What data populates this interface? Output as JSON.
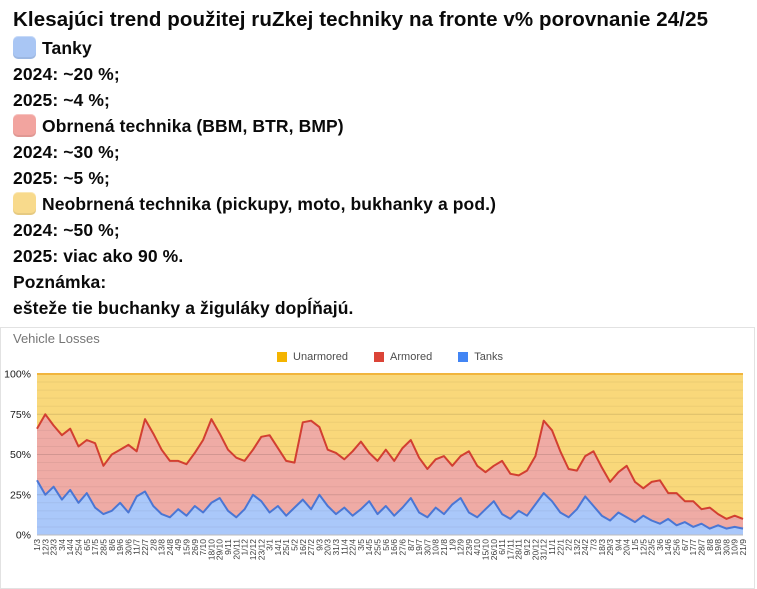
{
  "post": {
    "title": "Klesajúci trend použitej ruZkej techniky na fronte v% porovnanie 24/25",
    "items": [
      {
        "id": "tanks",
        "swatch": "#a9c6f4",
        "label": "Tanky",
        "lines": [
          "2024: ~20 %;",
          "2025: ~4 %;"
        ]
      },
      {
        "id": "armored",
        "swatch": "#f2a49f",
        "label": "Obrnená technika (BBM, BTR, BMP)",
        "lines": [
          "2024: ~30 %;",
          "2025: ~5 %;"
        ]
      },
      {
        "id": "unarmored",
        "swatch": "#f8da8c",
        "label": "Neobrnená technika (pickupy, moto, bukhanky a pod.)",
        "lines": [
          "2024: ~50 %;",
          "2025: viac ako 90 %."
        ]
      }
    ],
    "note_label": "Poznámka:",
    "note_text": "ešteže tie buchanky a žiguláky dopĺňajú."
  },
  "chart": {
    "title": "Vehicle Losses",
    "legend": [
      {
        "label": "Unarmored",
        "color": "#F4B400"
      },
      {
        "label": "Armored",
        "color": "#DB4437"
      },
      {
        "label": "Tanks",
        "color": "#4285F4"
      }
    ],
    "y_ticks": [
      {
        "label": "100%",
        "value": 100
      },
      {
        "label": "75%",
        "value": 75
      },
      {
        "label": "50%",
        "value": 50
      },
      {
        "label": "25%",
        "value": 25
      },
      {
        "label": "0%",
        "value": 0
      }
    ]
  },
  "chart_data": {
    "type": "area",
    "stacked": "percent",
    "title": "Vehicle Losses",
    "ylim": [
      0,
      100
    ],
    "y_major_step": 25,
    "y_minor_step": 5,
    "legend_position": "top-center",
    "categories": [
      "1/3",
      "12/3",
      "23/3",
      "3/4",
      "14/4",
      "25/4",
      "6/5",
      "17/5",
      "28/5",
      "8/6",
      "19/6",
      "30/6",
      "11/7",
      "22/7",
      "2/8",
      "13/8",
      "24/8",
      "4/9",
      "15/9",
      "26/9",
      "7/10",
      "18/10",
      "29/10",
      "9/11",
      "20/11",
      "1/12",
      "12/12",
      "23/12",
      "3/1",
      "14/1",
      "25/1",
      "5/2",
      "16/2",
      "27/2",
      "9/3",
      "20/3",
      "31/3",
      "11/4",
      "22/4",
      "3/5",
      "14/5",
      "25/5",
      "5/6",
      "16/6",
      "27/6",
      "8/7",
      "19/7",
      "30/7",
      "10/8",
      "21/8",
      "1/9",
      "12/9",
      "23/9",
      "4/10",
      "15/10",
      "26/10",
      "6/11",
      "17/11",
      "28/11",
      "9/12",
      "20/12",
      "31/12",
      "11/1",
      "22/1",
      "2/2",
      "13/2",
      "24/2",
      "7/3",
      "18/3",
      "29/3",
      "9/4",
      "20/4",
      "1/5",
      "12/5",
      "23/5",
      "3/6",
      "14/6",
      "25/6",
      "6/7",
      "17/7",
      "28/7",
      "8/8",
      "19/8",
      "30/8",
      "10/9",
      "21/9"
    ],
    "series": [
      {
        "name": "Tanks",
        "color": "#4285F4",
        "line_color": "#4a76d4",
        "fill": "rgba(66,133,244,0.45)",
        "values": [
          34,
          25,
          30,
          22,
          28,
          20,
          26,
          17,
          13,
          15,
          20,
          14,
          24,
          27,
          18,
          13,
          11,
          16,
          12,
          18,
          14,
          20,
          23,
          15,
          11,
          16,
          25,
          21,
          14,
          18,
          12,
          17,
          22,
          16,
          25,
          18,
          13,
          17,
          12,
          16,
          21,
          13,
          18,
          12,
          17,
          23,
          14,
          11,
          17,
          13,
          19,
          23,
          14,
          11,
          16,
          21,
          13,
          10,
          15,
          12,
          19,
          26,
          21,
          14,
          11,
          16,
          24,
          18,
          12,
          9,
          14,
          11,
          8,
          12,
          9,
          7,
          10,
          6,
          8,
          5,
          7,
          4,
          6,
          4,
          5,
          4
        ]
      },
      {
        "name": "Armored",
        "color": "#DB4437",
        "line_color": "#d23f31",
        "fill": "rgba(219,68,55,0.45)",
        "values": [
          32,
          50,
          38,
          40,
          38,
          35,
          33,
          40,
          30,
          35,
          33,
          42,
          28,
          45,
          45,
          40,
          35,
          30,
          32,
          33,
          45,
          52,
          40,
          38,
          37,
          30,
          28,
          40,
          48,
          36,
          34,
          28,
          48,
          55,
          42,
          35,
          38,
          30,
          40,
          42,
          30,
          33,
          35,
          34,
          37,
          36,
          34,
          30,
          30,
          36,
          24,
          26,
          38,
          32,
          23,
          22,
          33,
          28,
          22,
          28,
          30,
          45,
          44,
          38,
          30,
          24,
          25,
          34,
          30,
          24,
          25,
          32,
          25,
          17,
          24,
          27,
          16,
          20,
          13,
          16,
          9,
          13,
          7,
          6,
          7,
          6
        ]
      },
      {
        "name": "Unarmored",
        "color": "#F4B400",
        "line_color": "#f1b53d",
        "fill": "rgba(244,180,0,0.52)",
        "values": [
          34,
          25,
          32,
          38,
          34,
          45,
          41,
          43,
          57,
          50,
          47,
          44,
          48,
          28,
          37,
          47,
          54,
          54,
          56,
          49,
          41,
          28,
          37,
          47,
          52,
          54,
          47,
          39,
          38,
          46,
          54,
          55,
          30,
          29,
          33,
          47,
          49,
          53,
          48,
          42,
          49,
          54,
          47,
          54,
          46,
          41,
          52,
          59,
          53,
          51,
          57,
          51,
          48,
          57,
          61,
          57,
          54,
          62,
          63,
          60,
          51,
          29,
          35,
          48,
          59,
          60,
          51,
          48,
          58,
          67,
          61,
          57,
          67,
          71,
          67,
          66,
          74,
          74,
          79,
          79,
          84,
          83,
          87,
          90,
          88,
          90
        ]
      }
    ]
  }
}
